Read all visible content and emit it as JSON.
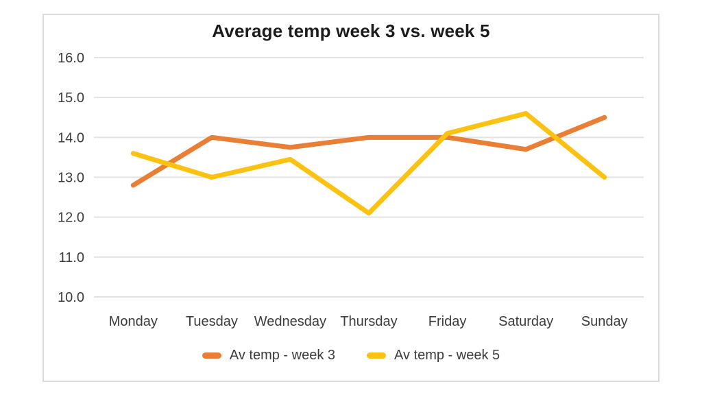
{
  "chart_data": {
    "type": "line",
    "title": "Average temp week 3 vs. week 5",
    "categories": [
      "Monday",
      "Tuesday",
      "Wednesday",
      "Thursday",
      "Friday",
      "Saturday",
      "Sunday"
    ],
    "series": [
      {
        "name": "Av temp - week 3",
        "color": "#E97E35",
        "values": [
          12.8,
          14.0,
          13.75,
          14.0,
          14.0,
          13.7,
          14.5
        ]
      },
      {
        "name": "Av temp - week 5",
        "color": "#FCC211",
        "values": [
          13.6,
          13.0,
          13.45,
          12.1,
          14.1,
          14.6,
          13.0
        ]
      }
    ],
    "y_tick_labels": [
      "16.0",
      "15.0",
      "14.0",
      "13.0",
      "12.0",
      "11.0",
      "10.0"
    ],
    "ylim": [
      10,
      16
    ],
    "grid": true,
    "legend_position": "bottom",
    "colors": {
      "gridline": "#e2e2e2",
      "axis_text": "#3b3b3b",
      "title_text": "#1c1c1c",
      "card_border": "#dbdbdb",
      "background": "#ffffff"
    }
  }
}
